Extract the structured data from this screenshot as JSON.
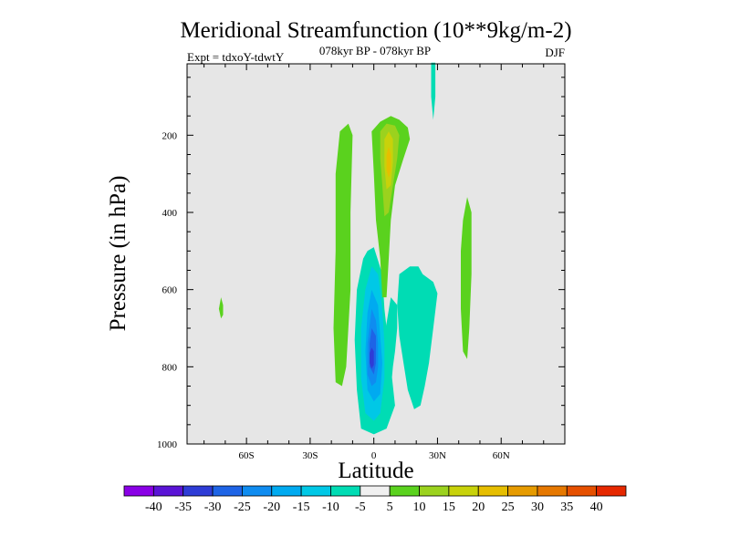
{
  "chart_data": {
    "type": "contour",
    "title": "Meridional Streamfunction (10**9kg/m-2)",
    "subtitle": "078kyr BP - 078kyr BP",
    "left_label": "Expt = tdxoY-tdwtY",
    "right_label": "DJF",
    "xlabel": "Latitude",
    "ylabel": "Pressure (in hPa)",
    "x_ticks": [
      {
        "value": -60,
        "label": "60S"
      },
      {
        "value": -30,
        "label": "30S"
      },
      {
        "value": 0,
        "label": "0"
      },
      {
        "value": 30,
        "label": "30N"
      },
      {
        "value": 60,
        "label": "60N"
      }
    ],
    "y_ticks": [
      {
        "value": 200,
        "label": "200"
      },
      {
        "value": 400,
        "label": "400"
      },
      {
        "value": 600,
        "label": "600"
      },
      {
        "value": 800,
        "label": "800"
      },
      {
        "value": 1000,
        "label": "1000"
      }
    ],
    "xlim": [
      -88,
      90
    ],
    "ylim": [
      1000,
      15
    ],
    "background_color": "#e6e6e6",
    "levels": [
      -40,
      -35,
      -30,
      -25,
      -20,
      -15,
      -10,
      -5,
      5,
      10,
      15,
      20,
      25,
      30,
      35,
      40
    ],
    "colorbar_labels": [
      "-40",
      "-35",
      "-30",
      "-25",
      "-20",
      "-15",
      "-10",
      "-5",
      "5",
      "10",
      "15",
      "20",
      "25",
      "30",
      "35",
      "40"
    ],
    "colorbar_colors": [
      "#8a00e6",
      "#5a14d6",
      "#2e3cd6",
      "#1e64e6",
      "#0f8cf0",
      "#00aaf0",
      "#00c8e6",
      "#00dcb4",
      "#f0f0f0",
      "#5ad21e",
      "#9bd21e",
      "#c8d20a",
      "#e6be00",
      "#e69b00",
      "#e67800",
      "#e65000",
      "#e62800"
    ],
    "regions": [
      {
        "name": "neg-cell-equator",
        "level": -5,
        "color": "#00dcb4",
        "points": [
          [
            -3,
            500
          ],
          [
            0,
            490
          ],
          [
            4,
            560
          ],
          [
            5,
            650
          ],
          [
            8,
            800
          ],
          [
            10,
            900
          ],
          [
            6,
            960
          ],
          [
            0,
            975
          ],
          [
            -6,
            960
          ],
          [
            -8,
            860
          ],
          [
            -9,
            730
          ],
          [
            -8,
            600
          ],
          [
            -5,
            520
          ]
        ]
      },
      {
        "name": "neg-cell-nh-subtropics",
        "level": -5,
        "color": "#00dcb4",
        "points": [
          [
            12,
            560
          ],
          [
            17,
            540
          ],
          [
            21,
            540
          ],
          [
            23,
            560
          ],
          [
            28,
            580
          ],
          [
            30,
            610
          ],
          [
            28,
            700
          ],
          [
            26,
            790
          ],
          [
            24,
            850
          ],
          [
            22,
            900
          ],
          [
            19,
            910
          ],
          [
            16,
            860
          ],
          [
            14,
            790
          ],
          [
            12,
            720
          ],
          [
            11,
            640
          ]
        ]
      },
      {
        "name": "neg-cell-connector",
        "level": -5,
        "color": "#00dcb4",
        "points": [
          [
            8,
            620
          ],
          [
            11,
            640
          ],
          [
            11,
            700
          ],
          [
            10,
            760
          ],
          [
            9,
            800
          ],
          [
            8,
            860
          ],
          [
            6,
            820
          ],
          [
            5,
            720
          ]
        ]
      },
      {
        "name": "neg-cell-stratosphere",
        "level": -5,
        "color": "#00dcb4",
        "points": [
          [
            27,
            12
          ],
          [
            29,
            12
          ],
          [
            29,
            100
          ],
          [
            28,
            160
          ],
          [
            27,
            100
          ]
        ]
      },
      {
        "name": "neg-core-10",
        "level": -10,
        "color": "#00c8e6",
        "points": [
          [
            -1,
            540
          ],
          [
            2,
            560
          ],
          [
            4,
            650
          ],
          [
            5,
            740
          ],
          [
            5,
            830
          ],
          [
            3,
            920
          ],
          [
            0,
            940
          ],
          [
            -4,
            920
          ],
          [
            -6,
            830
          ],
          [
            -6,
            700
          ],
          [
            -4,
            600
          ]
        ]
      },
      {
        "name": "neg-core-15",
        "level": -15,
        "color": "#00aaf0",
        "points": [
          [
            -1,
            600
          ],
          [
            2,
            640
          ],
          [
            3,
            720
          ],
          [
            4,
            790
          ],
          [
            3,
            870
          ],
          [
            0,
            890
          ],
          [
            -3,
            860
          ],
          [
            -4,
            760
          ],
          [
            -3,
            660
          ]
        ]
      },
      {
        "name": "neg-core-20",
        "level": -20,
        "color": "#0f8cf0",
        "points": [
          [
            -1,
            650
          ],
          [
            1,
            680
          ],
          [
            2,
            740
          ],
          [
            2,
            800
          ],
          [
            1,
            840
          ],
          [
            -1,
            850
          ],
          [
            -3,
            820
          ],
          [
            -3,
            740
          ]
        ]
      },
      {
        "name": "neg-core-25",
        "level": -25,
        "color": "#1e64e6",
        "points": [
          [
            -1,
            700
          ],
          [
            1,
            720
          ],
          [
            1,
            790
          ],
          [
            0,
            820
          ],
          [
            -2,
            800
          ],
          [
            -2,
            740
          ]
        ]
      },
      {
        "name": "neg-core-30",
        "level": -30,
        "color": "#2e3cd6",
        "points": [
          [
            -1,
            750
          ],
          [
            0,
            760
          ],
          [
            0,
            795
          ],
          [
            -1,
            805
          ],
          [
            -2,
            790
          ],
          [
            -2,
            765
          ]
        ]
      },
      {
        "name": "pos-cell-sh-band",
        "level": 5,
        "color": "#5ad21e",
        "points": [
          [
            -16,
            190
          ],
          [
            -12,
            170
          ],
          [
            -10,
            200
          ],
          [
            -11,
            400
          ],
          [
            -11,
            600
          ],
          [
            -13,
            800
          ],
          [
            -15,
            850
          ],
          [
            -18,
            840
          ],
          [
            -19,
            700
          ],
          [
            -18,
            500
          ],
          [
            -18,
            300
          ]
        ]
      },
      {
        "name": "pos-cell-tropical-tower",
        "level": 5,
        "color": "#5ad21e",
        "points": [
          [
            -1,
            190
          ],
          [
            3,
            165
          ],
          [
            8,
            150
          ],
          [
            12,
            160
          ],
          [
            16,
            180
          ],
          [
            17,
            210
          ],
          [
            14,
            260
          ],
          [
            10,
            330
          ],
          [
            8,
            420
          ],
          [
            7,
            520
          ],
          [
            6,
            620
          ],
          [
            4,
            620
          ],
          [
            3,
            520
          ],
          [
            1,
            420
          ],
          [
            0,
            300
          ]
        ]
      },
      {
        "name": "pos-cell-nh-midlat",
        "level": 5,
        "color": "#5ad21e",
        "points": [
          [
            44,
            360
          ],
          [
            46,
            400
          ],
          [
            46,
            560
          ],
          [
            45,
            700
          ],
          [
            44,
            780
          ],
          [
            42,
            760
          ],
          [
            41,
            650
          ],
          [
            41,
            500
          ],
          [
            42,
            420
          ]
        ]
      },
      {
        "name": "pos-cell-sh-blob",
        "level": 5,
        "color": "#5ad21e",
        "points": [
          [
            -72,
            620
          ],
          [
            -71,
            640
          ],
          [
            -71,
            665
          ],
          [
            -72,
            675
          ],
          [
            -73,
            650
          ]
        ]
      },
      {
        "name": "pos-core-10",
        "level": 10,
        "color": "#9bd21e",
        "points": [
          [
            3,
            190
          ],
          [
            6,
            170
          ],
          [
            10,
            175
          ],
          [
            12,
            200
          ],
          [
            11,
            260
          ],
          [
            9,
            330
          ],
          [
            7,
            400
          ],
          [
            5,
            410
          ],
          [
            4,
            330
          ],
          [
            3,
            260
          ]
        ]
      },
      {
        "name": "pos-core-15",
        "level": 15,
        "color": "#c8d20a",
        "points": [
          [
            5,
            210
          ],
          [
            7,
            190
          ],
          [
            9,
            210
          ],
          [
            9,
            270
          ],
          [
            8,
            330
          ],
          [
            6,
            340
          ],
          [
            5,
            280
          ]
        ]
      },
      {
        "name": "pos-core-20",
        "level": 20,
        "color": "#e6be00",
        "points": [
          [
            6,
            250
          ],
          [
            7,
            230
          ],
          [
            8,
            250
          ],
          [
            8,
            290
          ],
          [
            7,
            310
          ],
          [
            6,
            290
          ]
        ]
      }
    ]
  }
}
